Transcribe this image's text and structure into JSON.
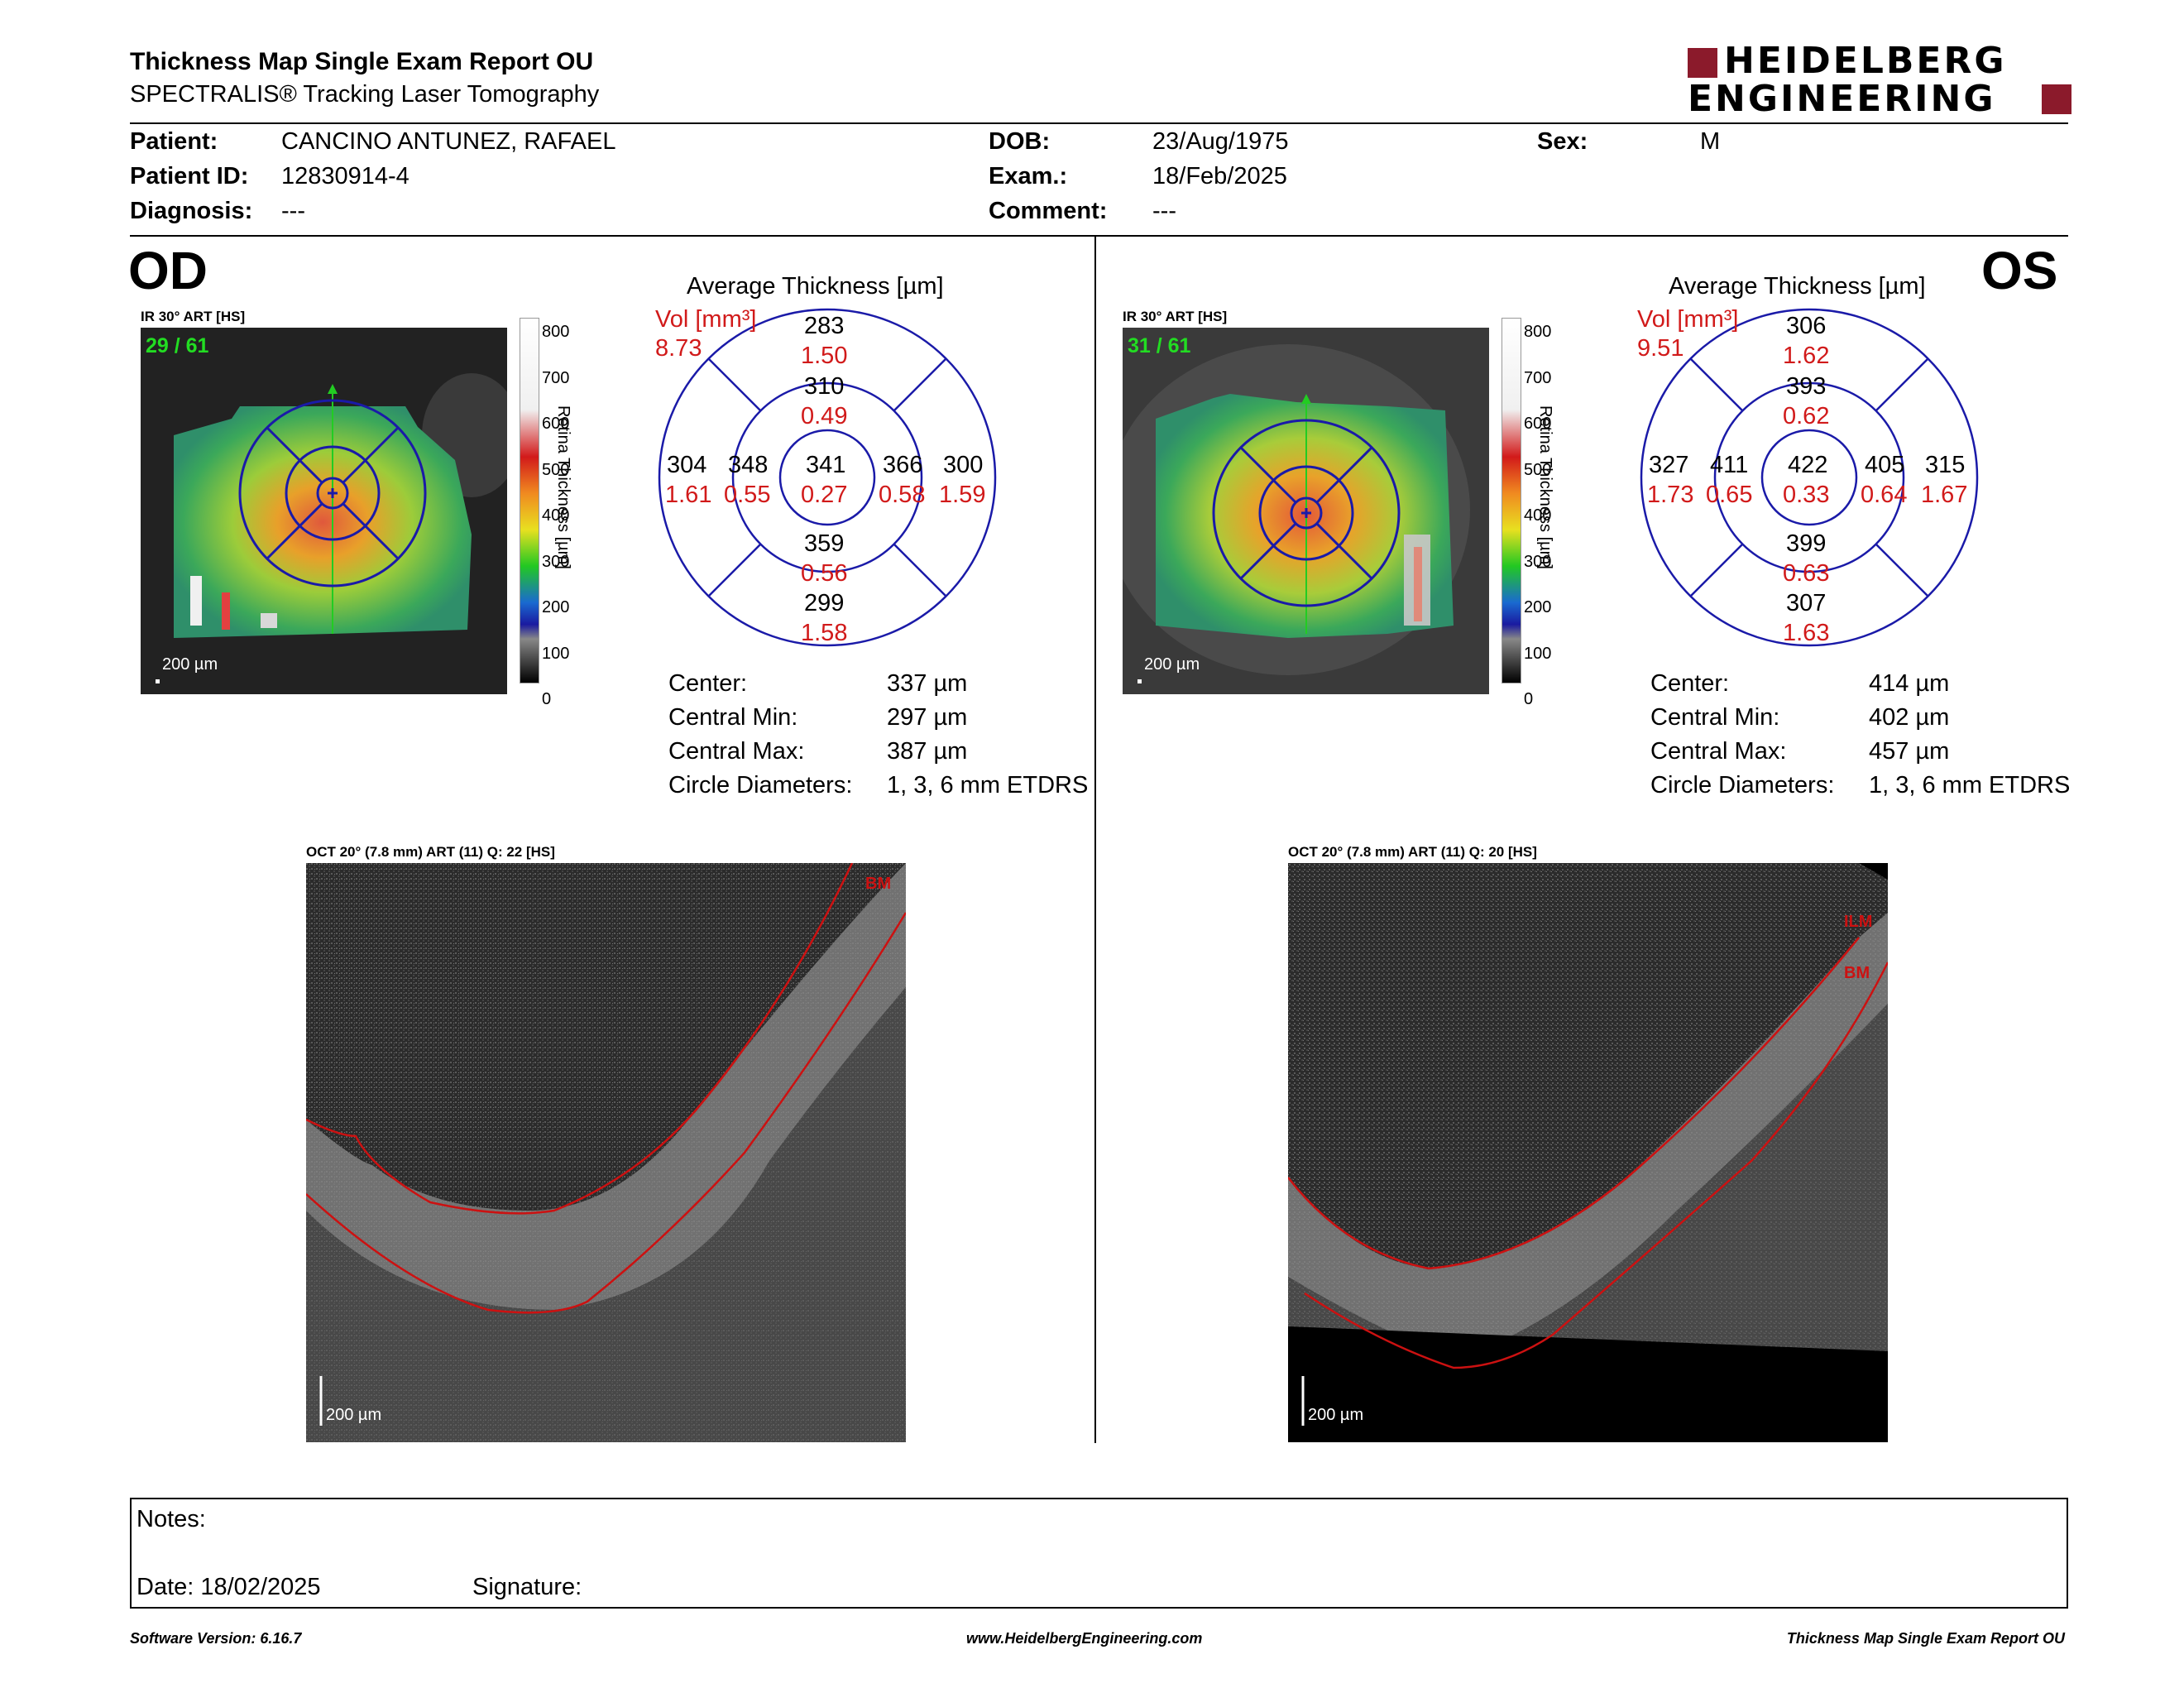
{
  "header": {
    "title": "Thickness Map Single Exam Report OU",
    "subtitle": "SPECTRALIS® Tracking Laser Tomography",
    "logo_line1": "HEIDELBERG",
    "logo_line2": "ENGINEERING",
    "brand_color": "#8B1A2B"
  },
  "patient": {
    "patient_label": "Patient:",
    "patient_value": "CANCINO ANTUNEZ, RAFAEL",
    "id_label": "Patient ID:",
    "id_value": "12830914-4",
    "diagnosis_label": "Diagnosis:",
    "diagnosis_value": "---",
    "dob_label": "DOB:",
    "dob_value": "23/Aug/1975",
    "exam_label": "Exam.:",
    "exam_value": "18/Feb/2025",
    "comment_label": "Comment:",
    "comment_value": "---",
    "sex_label": "Sex:",
    "sex_value": "M"
  },
  "od": {
    "eye_label": "OD",
    "ir_label": "IR 30° ART [HS]",
    "frame": "29 / 61",
    "scale": "200 µm",
    "avg_title": "Average Thickness [µm]",
    "vol_label": "Vol [mm³]",
    "vol_total": "8.73",
    "sectors": {
      "outer_sup": {
        "t": "283",
        "v": "1.50"
      },
      "inner_sup": {
        "t": "310",
        "v": "0.49"
      },
      "outer_temp": {
        "t": "304",
        "v": "1.61"
      },
      "inner_temp": {
        "t": "348",
        "v": "0.55"
      },
      "center": {
        "t": "341",
        "v": "0.27"
      },
      "inner_nas": {
        "t": "366",
        "v": "0.58"
      },
      "outer_nas": {
        "t": "300",
        "v": "1.59"
      },
      "inner_inf": {
        "t": "359",
        "v": "0.56"
      },
      "outer_inf": {
        "t": "299",
        "v": "1.58"
      }
    },
    "stats": {
      "center_label": "Center:",
      "center_value": "337 µm",
      "min_label": "Central Min:",
      "min_value": "297 µm",
      "max_label": "Central Max:",
      "max_value": "387 µm",
      "diam_label": "Circle Diameters:",
      "diam_value": "1, 3, 6 mm ETDRS"
    },
    "oct_label": "OCT 20° (7.8 mm) ART (11) Q: 22 [HS]",
    "oct_scale": "200 µm",
    "oct_marks": [
      "BM"
    ]
  },
  "os": {
    "eye_label": "OS",
    "ir_label": "IR 30° ART [HS]",
    "frame": "31 / 61",
    "scale": "200 µm",
    "avg_title": "Average Thickness [µm]",
    "vol_label": "Vol [mm³]",
    "vol_total": "9.51",
    "sectors": {
      "outer_sup": {
        "t": "306",
        "v": "1.62"
      },
      "inner_sup": {
        "t": "393",
        "v": "0.62"
      },
      "outer_temp": {
        "t": "327",
        "v": "1.73"
      },
      "inner_temp": {
        "t": "411",
        "v": "0.65"
      },
      "center": {
        "t": "422",
        "v": "0.33"
      },
      "inner_nas": {
        "t": "405",
        "v": "0.64"
      },
      "outer_nas": {
        "t": "315",
        "v": "1.67"
      },
      "inner_inf": {
        "t": "399",
        "v": "0.63"
      },
      "outer_inf": {
        "t": "307",
        "v": "1.63"
      }
    },
    "stats": {
      "center_label": "Center:",
      "center_value": "414 µm",
      "min_label": "Central Min:",
      "min_value": "402 µm",
      "max_label": "Central Max:",
      "max_value": "457 µm",
      "diam_label": "Circle Diameters:",
      "diam_value": "1, 3, 6 mm ETDRS"
    },
    "oct_label": "OCT 20° (7.8 mm) ART (11) Q: 20 [HS]",
    "oct_scale": "200 µm",
    "oct_marks": [
      "ILM",
      "BM"
    ]
  },
  "colorbar": {
    "ticks": [
      "800",
      "700",
      "600",
      "500",
      "400",
      "300",
      "200",
      "100",
      "0"
    ],
    "title": "Retina  Thickness [µm]"
  },
  "notes": {
    "notes_label": "Notes:",
    "date_label": "Date: 18/02/2025",
    "signature_label": "Signature:"
  },
  "footer": {
    "left": "Software Version: 6.16.7",
    "center": "www.HeidelbergEngineering.com",
    "right": "Thickness Map Single Exam Report OU"
  },
  "colors": {
    "grid_blue": "#1a1aa8",
    "value_red": "#d11a1a",
    "frame_green": "#22dd22",
    "seg_red": "#cc1111"
  }
}
